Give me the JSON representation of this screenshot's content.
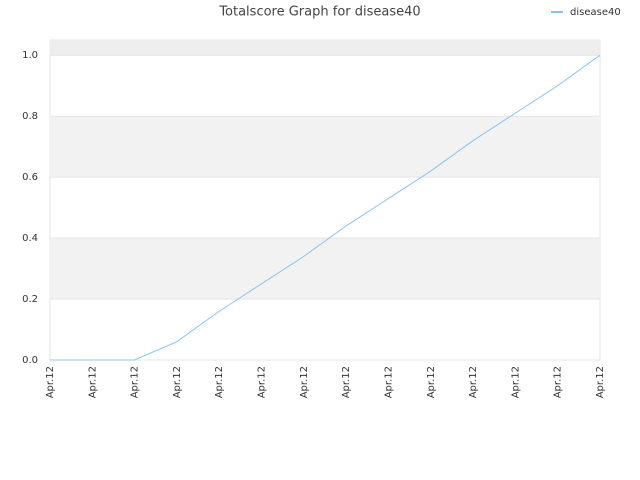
{
  "chart_data": {
    "type": "line",
    "title": "Totalscore Graph for disease40",
    "categories": [
      "Apr.12",
      "Apr.12",
      "Apr.12",
      "Apr.12",
      "Apr.12",
      "Apr.12",
      "Apr.12",
      "Apr.12",
      "Apr.12",
      "Apr.12",
      "Apr.12",
      "Apr.12",
      "Apr.12",
      "Apr.12"
    ],
    "series": [
      {
        "name": "disease40",
        "color": "#88c4f0",
        "values": [
          0,
          0,
          0,
          0.06,
          0.16,
          0.25,
          0.34,
          0.44,
          0.53,
          0.62,
          0.72,
          0.81,
          0.9,
          1.0
        ]
      }
    ],
    "ylim": [
      0,
      1.05
    ],
    "yticks": [
      {
        "value": 0,
        "label": "0.0"
      },
      {
        "value": 0.2,
        "label": "0.2"
      },
      {
        "value": 0.4,
        "label": "0.4"
      },
      {
        "value": 0.6,
        "label": "0.6"
      },
      {
        "value": 0.8,
        "label": "0.8"
      },
      {
        "value": 1.0,
        "label": "1.0"
      }
    ],
    "grid": true,
    "legend": "top-right"
  }
}
